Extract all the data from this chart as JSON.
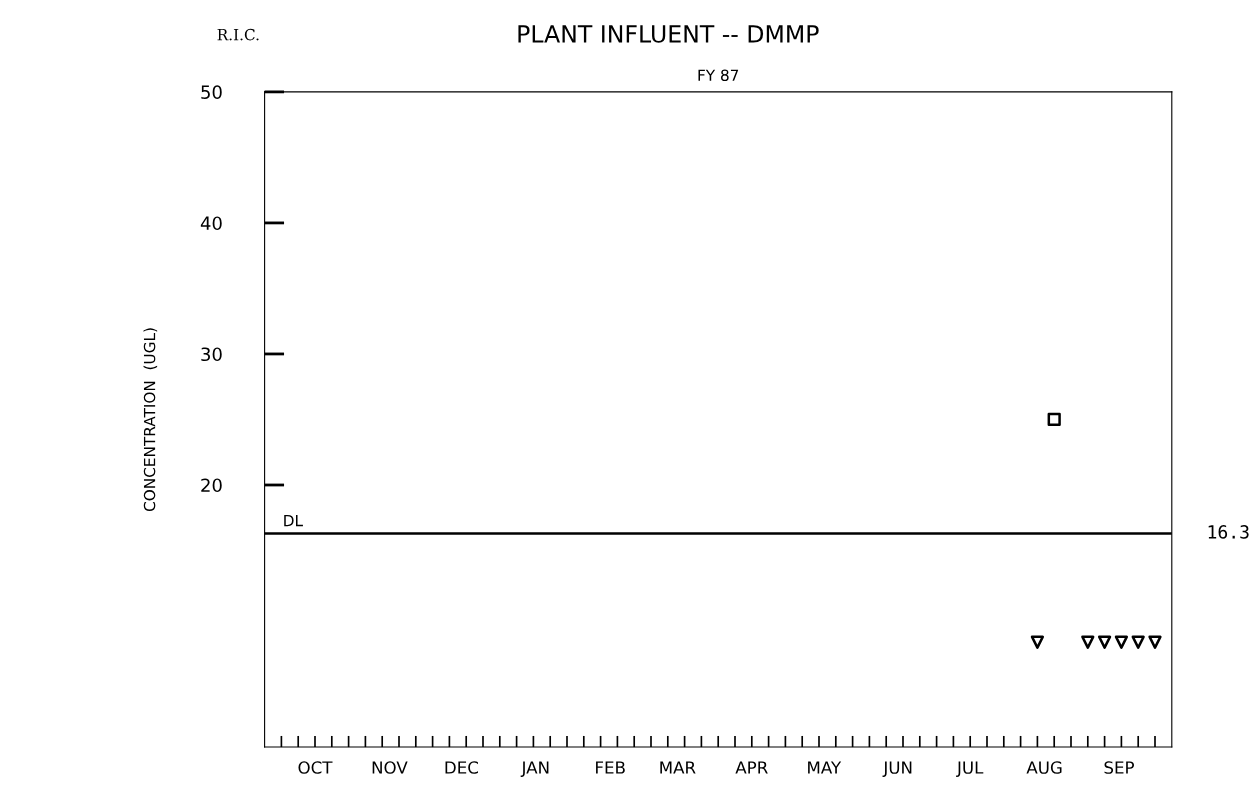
{
  "chart_data": {
    "type": "scatter",
    "title": "PLANT INFLUENT -- DMMP",
    "subtitle": "FY 87",
    "ylabel": "CONCENTRATION  (UGL)",
    "annotations": [
      "R.I.C.",
      {
        "text": "16.3",
        "x": "1987-10-07",
        "y": 16.3
      }
    ],
    "xlim": [
      "1986-09-24",
      "1987-10-07"
    ],
    "xticks": [
      {
        "value": "1986-10-01",
        "label": null
      },
      {
        "value": "1986-10-08",
        "label": null
      },
      {
        "value": "1986-10-15",
        "label": null
      },
      {
        "value": "1986-10-22",
        "label": null
      },
      {
        "value": "1986-10-29",
        "label": null
      },
      {
        "value": "1986-11-05",
        "label": null
      },
      {
        "value": "1986-11-12",
        "label": null
      },
      {
        "value": "1986-11-19",
        "label": null
      },
      {
        "value": "1986-11-26",
        "label": null
      },
      {
        "value": "1986-12-03",
        "label": null
      },
      {
        "value": "1986-12-10",
        "label": null
      },
      {
        "value": "1986-12-17",
        "label": null
      },
      {
        "value": "1986-12-24",
        "label": null
      },
      {
        "value": "1986-12-31",
        "label": null
      },
      {
        "value": "1987-01-07",
        "label": null
      },
      {
        "value": "1987-01-14",
        "label": null
      },
      {
        "value": "1987-01-21",
        "label": null
      },
      {
        "value": "1987-01-28",
        "label": null
      },
      {
        "value": "1987-02-04",
        "label": null
      },
      {
        "value": "1987-02-11",
        "label": null
      },
      {
        "value": "1987-02-18",
        "label": null
      },
      {
        "value": "1987-02-25",
        "label": null
      },
      {
        "value": "1987-03-04",
        "label": null
      },
      {
        "value": "1987-03-11",
        "label": null
      },
      {
        "value": "1987-03-18",
        "label": null
      },
      {
        "value": "1987-03-25",
        "label": null
      },
      {
        "value": "1987-04-01",
        "label": null
      },
      {
        "value": "1987-04-08",
        "label": null
      },
      {
        "value": "1987-04-15",
        "label": null
      },
      {
        "value": "1987-04-22",
        "label": null
      },
      {
        "value": "1987-04-29",
        "label": null
      },
      {
        "value": "1987-05-06",
        "label": null
      },
      {
        "value": "1987-05-13",
        "label": null
      },
      {
        "value": "1987-05-20",
        "label": null
      },
      {
        "value": "1987-05-27",
        "label": null
      },
      {
        "value": "1987-06-03",
        "label": null
      },
      {
        "value": "1987-06-10",
        "label": null
      },
      {
        "value": "1987-06-17",
        "label": null
      },
      {
        "value": "1987-06-24",
        "label": null
      },
      {
        "value": "1987-07-01",
        "label": null
      },
      {
        "value": "1987-07-08",
        "label": null
      },
      {
        "value": "1987-07-15",
        "label": null
      },
      {
        "value": "1987-07-22",
        "label": null
      },
      {
        "value": "1987-07-29",
        "label": null
      },
      {
        "value": "1987-08-05",
        "label": null
      },
      {
        "value": "1987-08-12",
        "label": null
      },
      {
        "value": "1987-08-19",
        "label": null
      },
      {
        "value": "1987-08-26",
        "label": null
      },
      {
        "value": "1987-09-02",
        "label": null
      },
      {
        "value": "1987-09-09",
        "label": null
      },
      {
        "value": "1987-09-16",
        "label": null
      },
      {
        "value": "1987-09-23",
        "label": null
      },
      {
        "value": "1987-09-30",
        "label": null
      },
      {
        "value": "1986-10-15",
        "label": "OCT"
      },
      {
        "value": "1986-11-15",
        "label": "NOV"
      },
      {
        "value": "1986-12-15",
        "label": "DEC"
      },
      {
        "value": "1987-01-15",
        "label": "JAN"
      },
      {
        "value": "1987-02-15",
        "label": "FEB"
      },
      {
        "value": "1987-03-15",
        "label": "MAR"
      },
      {
        "value": "1987-04-15",
        "label": "APR"
      },
      {
        "value": "1987-05-15",
        "label": "MAY"
      },
      {
        "value": "1987-06-15",
        "label": "JUN"
      },
      {
        "value": "1987-07-15",
        "label": "JUL"
      },
      {
        "value": "1987-08-15",
        "label": "AUG"
      },
      {
        "value": "1987-09-15",
        "label": "SEP"
      }
    ],
    "ylim": [
      0,
      50
    ],
    "yticks": [
      20,
      30,
      40,
      50
    ],
    "grid": false,
    "series": [
      {
        "color": "#000000",
        "marker": "square",
        "x": [
          "1987-08-19"
        ],
        "values": [
          25
        ]
      },
      {
        "color": "#000000",
        "marker": "triangle",
        "x": [
          "1987-08-12",
          "1987-09-02",
          "1987-09-09",
          "1987-09-16",
          "1987-09-23",
          "1987-09-30"
        ],
        "values": [
          8,
          8,
          8,
          8,
          8,
          8
        ]
      }
    ],
    "ref_lines": [
      {
        "axis": "y",
        "value": 16.3,
        "label": "DL",
        "color": "#000000",
        "line_style": "solid"
      }
    ]
  }
}
